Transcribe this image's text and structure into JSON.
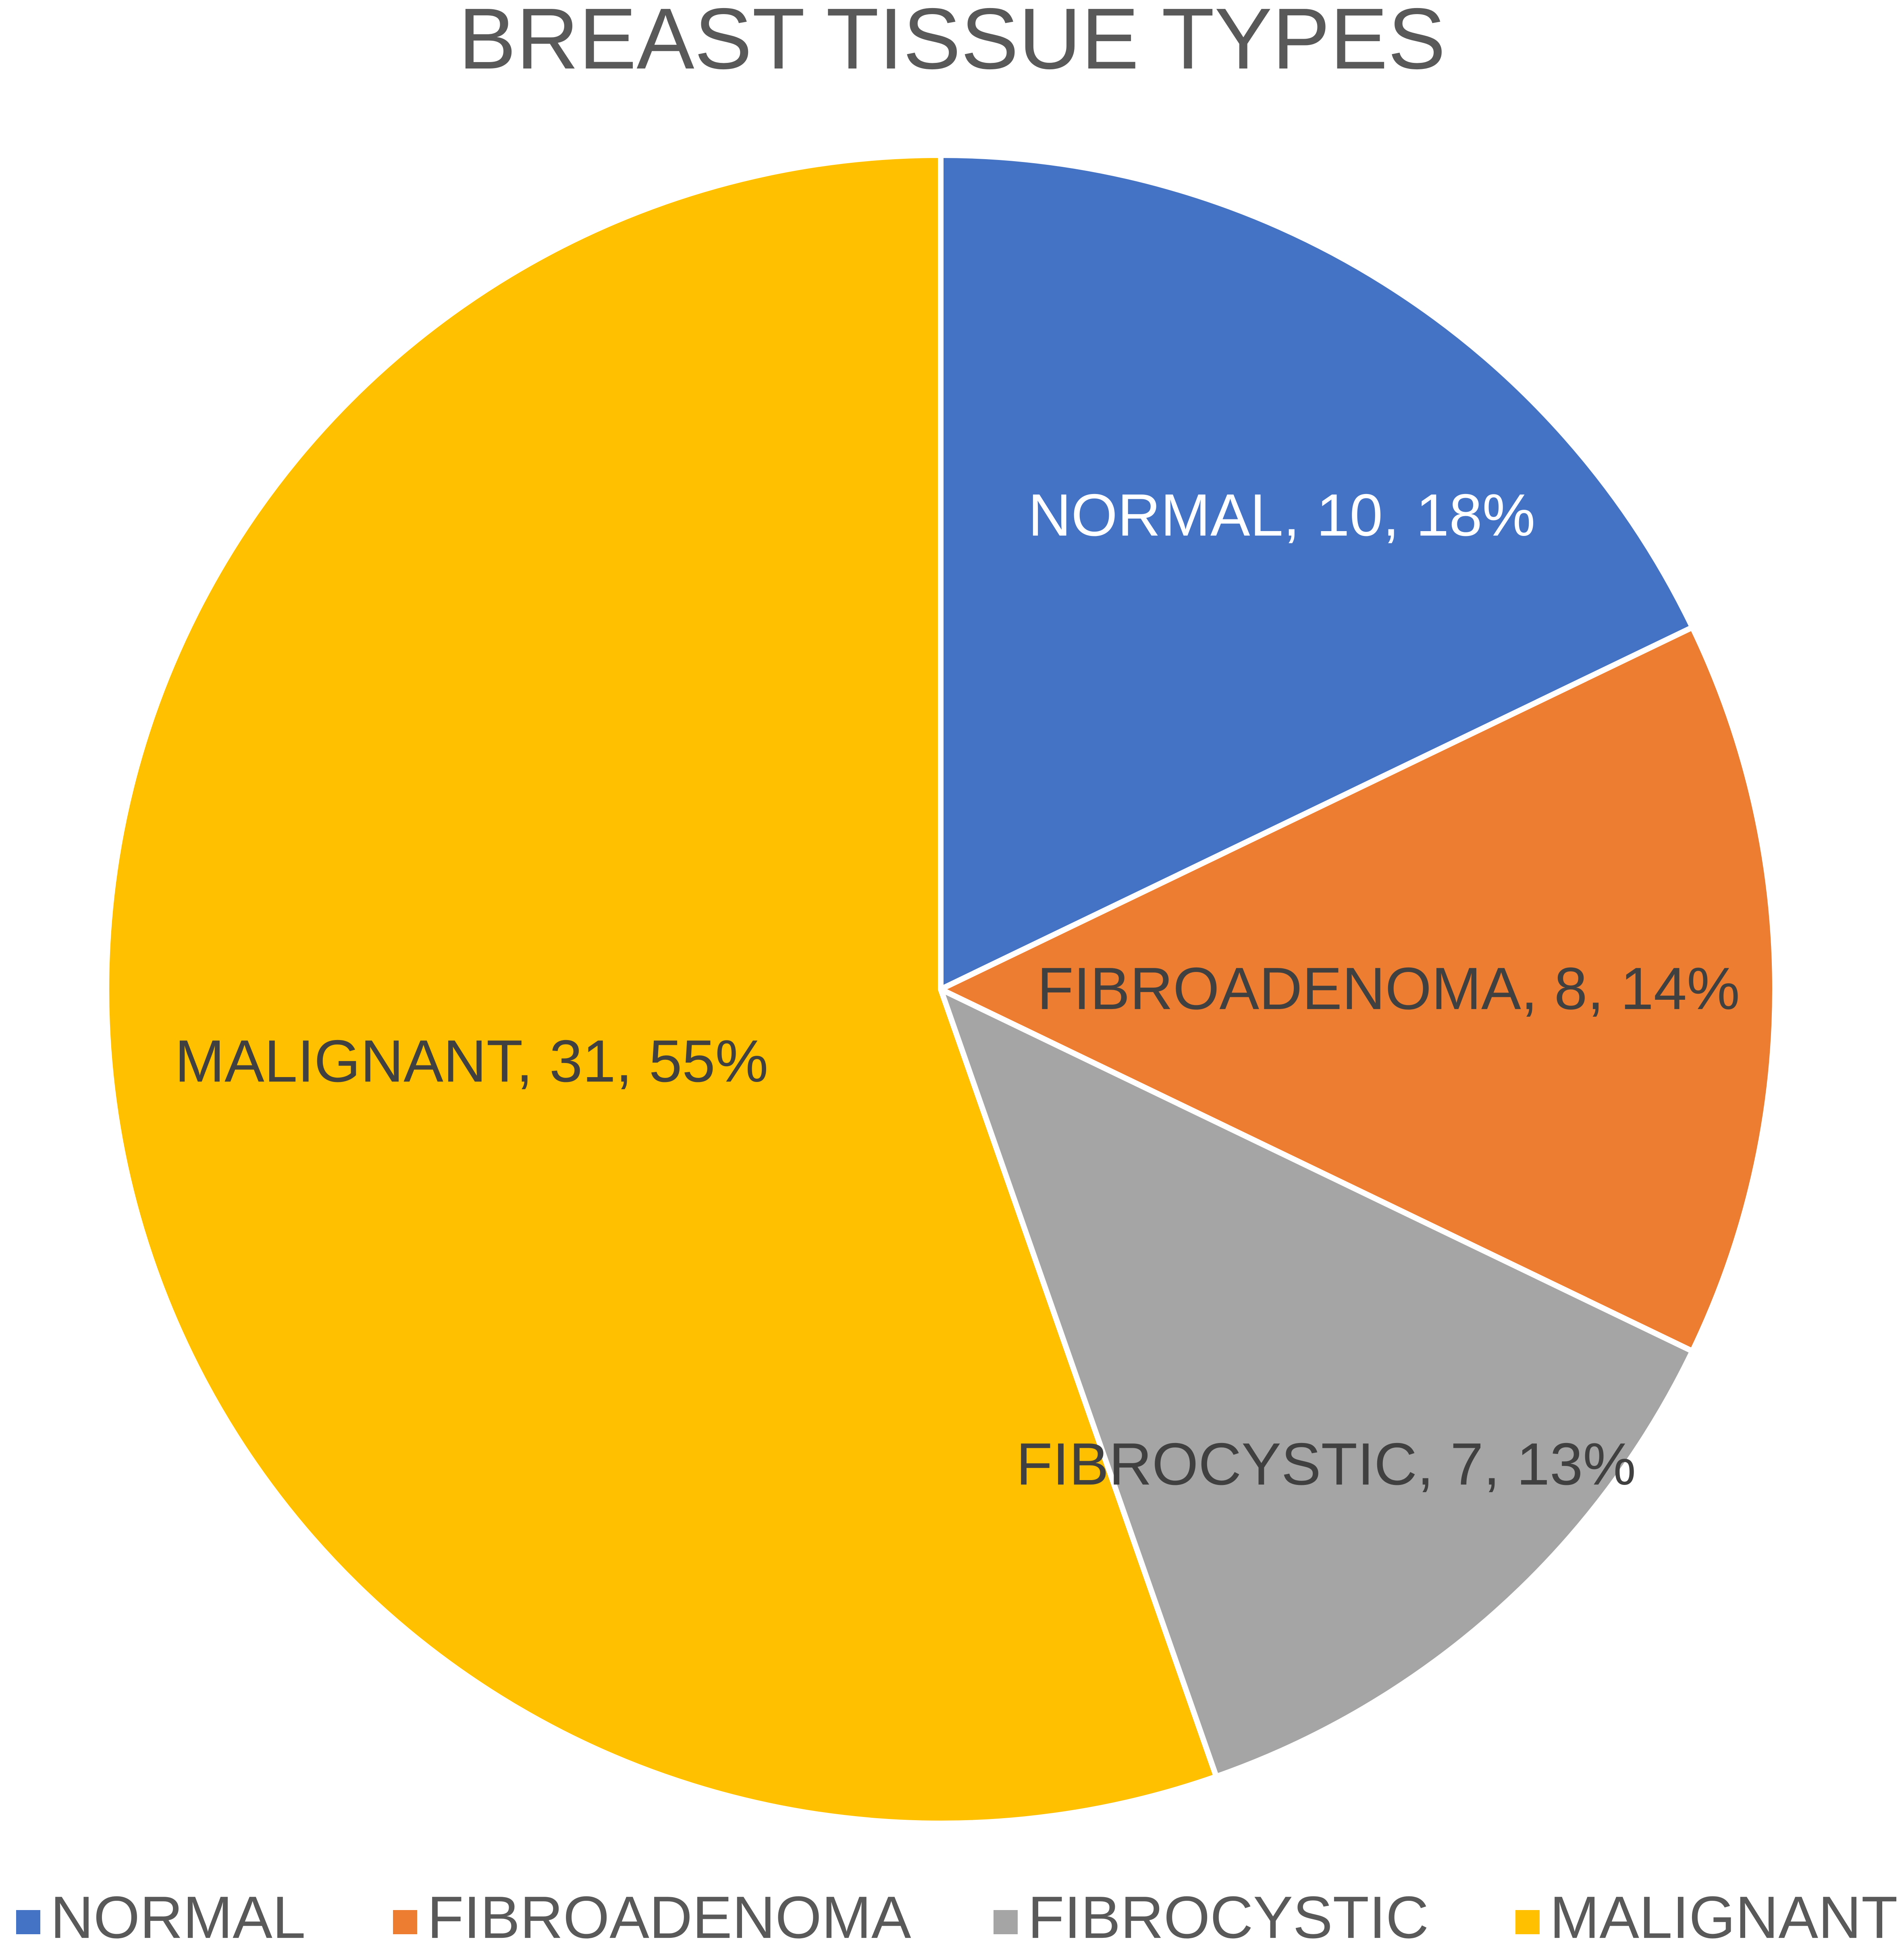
{
  "chart_data": {
    "type": "pie",
    "title": "BREAST TISSUE TYPES",
    "categories": [
      "NORMAL",
      "FIBROADENOMA",
      "FIBROCYSTIC",
      "MALIGNANT"
    ],
    "values": [
      10,
      8,
      7,
      31
    ],
    "percent_labels": [
      "18%",
      "14%",
      "13%",
      "55%"
    ],
    "data_labels": [
      "NORMAL, 10, 18%",
      "FIBROADENOMA, 8, 14%",
      "FIBROCYSTIC, 7, 13%",
      "MALIGNANT, 31, 55%"
    ],
    "colors": [
      "#4472C4",
      "#ED7D31",
      "#A5A5A5",
      "#FFC000"
    ],
    "start_angle_deg": 0,
    "direction": "clockwise",
    "legend": {
      "position": "bottom",
      "entries": [
        "NORMAL",
        "FIBROADENOMA",
        "FIBROCYSTIC",
        "MALIGNANT"
      ]
    },
    "label_colors": {
      "NORMAL": "#ffffff",
      "FIBROADENOMA": "#404040",
      "FIBROCYSTIC": "#404040",
      "MALIGNANT": "#404040"
    },
    "title_color": "#595959",
    "legend_text_color": "#595959",
    "slice_border_color": "#ffffff"
  }
}
